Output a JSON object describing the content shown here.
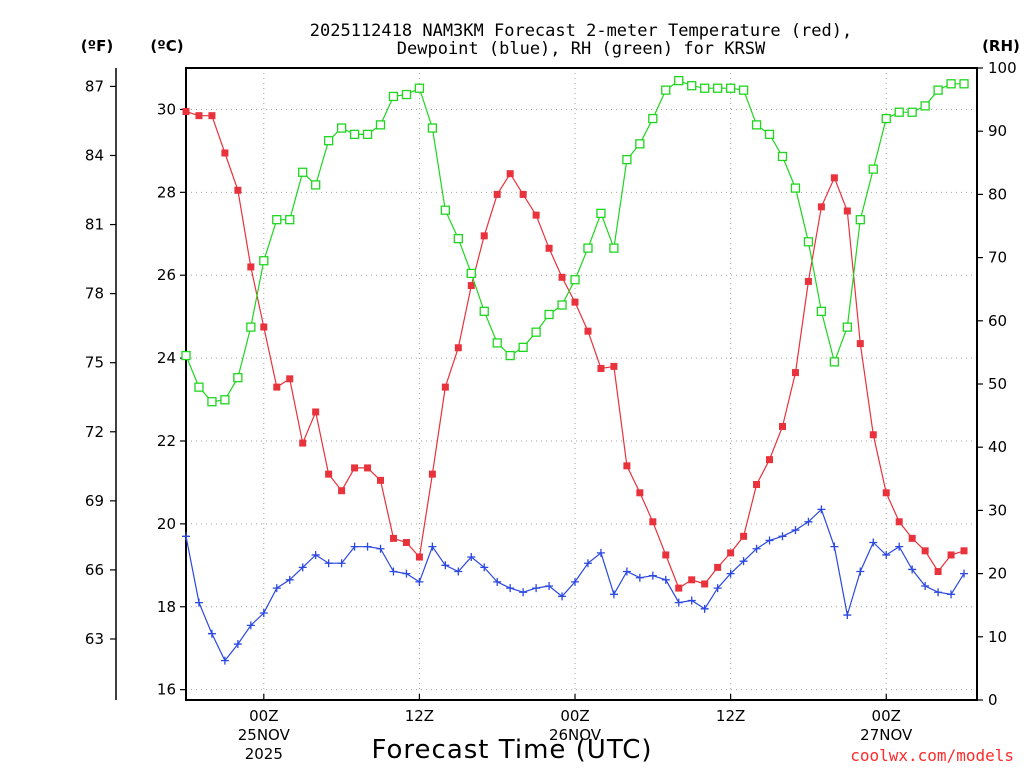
{
  "chart_data": {
    "type": "line",
    "title_line1": "2025112418 NAM3KM Forecast 2-meter Temperature (red),",
    "title_line2": "Dewpoint (blue), RH (green) for KRSW",
    "unit_f": "(ºF)",
    "unit_c": "(ºC)",
    "unit_rh": "(RH)",
    "xlabel": "Forecast Time (UTC)",
    "credit": "coolwx.com/models",
    "x_range": [
      0,
      61
    ],
    "c_range": [
      15.75,
      31.0
    ],
    "rh_range": [
      0,
      100
    ],
    "f_ticks": [
      "87",
      "84",
      "81",
      "78",
      "75",
      "72",
      "69",
      "66",
      "63"
    ],
    "f_tick_values": [
      87,
      84,
      81,
      78,
      75,
      72,
      69,
      66,
      63
    ],
    "c_ticks": [
      "30",
      "28",
      "26",
      "24",
      "22",
      "20",
      "18",
      "16"
    ],
    "c_tick_values": [
      30,
      28,
      26,
      24,
      22,
      20,
      18,
      16
    ],
    "rh_ticks": [
      "100",
      "90",
      "80",
      "70",
      "60",
      "50",
      "40",
      "30",
      "20",
      "10",
      "0"
    ],
    "rh_tick_values": [
      100,
      90,
      80,
      70,
      60,
      50,
      40,
      30,
      20,
      10,
      0
    ],
    "x_ticks": [
      {
        "x": 6,
        "label1": "00Z",
        "label2": "25NOV",
        "label3": "2025"
      },
      {
        "x": 18,
        "label1": "12Z",
        "label2": "",
        "label3": ""
      },
      {
        "x": 30,
        "label1": "00Z",
        "label2": "26NOV",
        "label3": ""
      },
      {
        "x": 42,
        "label1": "12Z",
        "label2": "",
        "label3": ""
      },
      {
        "x": 54,
        "label1": "00Z",
        "label2": "27NOV",
        "label3": ""
      }
    ],
    "series": [
      {
        "name": "Temperature (red)",
        "units": "C",
        "color": "#e8323c",
        "marker": "filled-square",
        "values": [
          29.95,
          29.85,
          29.85,
          28.95,
          28.05,
          26.2,
          24.75,
          23.3,
          23.5,
          21.95,
          22.7,
          21.2,
          20.8,
          21.35,
          21.35,
          21.05,
          19.65,
          19.55,
          19.2,
          21.2,
          23.3,
          24.25,
          25.75,
          26.95,
          27.95,
          28.45,
          27.95,
          27.45,
          26.65,
          25.95,
          25.35,
          24.65,
          23.75,
          23.8,
          21.4,
          20.75,
          20.05,
          19.25,
          18.45,
          18.65,
          18.55,
          18.95,
          19.3,
          19.7,
          20.95,
          21.55,
          22.35,
          23.65,
          25.85,
          27.65,
          28.35,
          27.55,
          24.35,
          22.15,
          20.75,
          20.05,
          19.65,
          19.35,
          18.85,
          19.25,
          19.35
        ]
      },
      {
        "name": "Dewpoint (blue)",
        "units": "C",
        "color": "#2b48e0",
        "marker": "plus",
        "values": [
          19.7,
          18.1,
          17.35,
          16.7,
          17.1,
          17.55,
          17.85,
          18.45,
          18.65,
          18.95,
          19.25,
          19.05,
          19.05,
          19.45,
          19.45,
          19.4,
          18.85,
          18.8,
          18.6,
          19.45,
          19.0,
          18.85,
          19.2,
          18.95,
          18.6,
          18.45,
          18.35,
          18.45,
          18.5,
          18.25,
          18.6,
          19.05,
          19.3,
          18.3,
          18.85,
          18.7,
          18.75,
          18.65,
          18.1,
          18.15,
          17.95,
          18.45,
          18.8,
          19.1,
          19.4,
          19.6,
          19.7,
          19.85,
          20.05,
          20.35,
          19.45,
          17.8,
          18.85,
          19.55,
          19.25,
          19.45,
          18.9,
          18.5,
          18.35,
          18.3,
          18.8
        ]
      },
      {
        "name": "RH (green)",
        "units": "%",
        "color": "#1ed61e",
        "marker": "open-square",
        "values": [
          54.5,
          49.5,
          47.2,
          47.5,
          51,
          59,
          69.5,
          76,
          76,
          83.5,
          81.5,
          88.5,
          90.5,
          89.5,
          89.5,
          91,
          95.5,
          95.8,
          96.8,
          90.5,
          77.5,
          73,
          67.5,
          61.5,
          56.5,
          54.5,
          55.8,
          58.2,
          61,
          62.5,
          66.5,
          71.5,
          77,
          71.5,
          85.5,
          88,
          92,
          96.5,
          98,
          97.2,
          96.8,
          96.8,
          96.8,
          96.5,
          91,
          89.5,
          86,
          81,
          72.5,
          61.5,
          53.5,
          59,
          76,
          84,
          92,
          93,
          93,
          94,
          96.5,
          97.5,
          97.5
        ]
      }
    ]
  }
}
